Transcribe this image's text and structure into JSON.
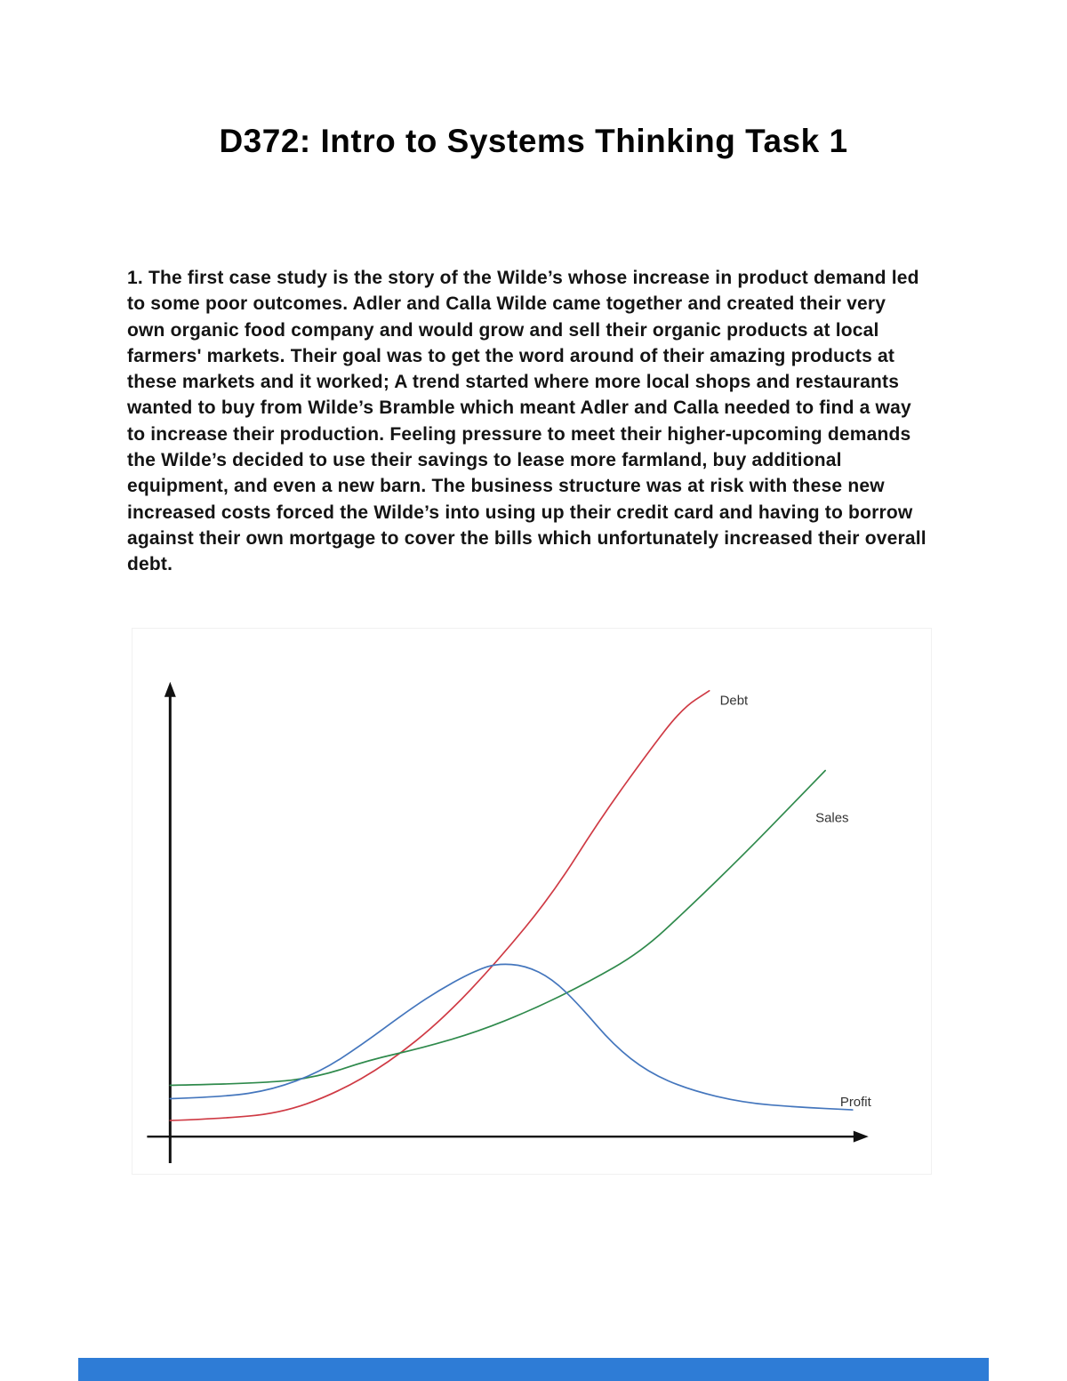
{
  "page": {
    "title": "D372: Intro to Systems Thinking Task 1",
    "paragraph": "1. The first case study is the story of the Wilde’s whose increase in product demand led to some poor outcomes. Adler and Calla Wilde came together and created their very own organic food company and would grow and sell their organic products at local farmers' markets. Their goal was to get the word around of their amazing products at these markets and it worked; A trend started where more local shops and restaurants wanted to buy from Wilde’s Bramble which meant Adler and Calla needed to find a way to increase their production. Feeling pressure to meet their higher-upcoming demands the Wilde’s decided to use their savings to lease more farmland, buy additional equipment, and even a new barn. The business structure was at risk with these new increased costs forced the Wilde’s into using up their credit card and having to borrow against their own mortgage to cover the bills which unfortunately increased their overall debt.",
    "footer_bar_color": "#2e7cd6"
  },
  "chart_data": {
    "type": "line",
    "title": "",
    "xlabel": "",
    "ylabel": "",
    "grid": false,
    "legend_position": "inline-end-labels",
    "axes": "unlabeled arrows (behavior-over-time graph)",
    "xlim": [
      0,
      100
    ],
    "ylim": [
      0,
      100
    ],
    "axis_color": "#111111",
    "series": [
      {
        "name": "Debt",
        "color": "#cf3a44",
        "x": [
          0,
          7,
          16,
          24,
          32,
          40,
          48,
          56,
          63,
          70,
          75,
          79
        ],
        "y": [
          3.6,
          4.0,
          5.2,
          9.5,
          16.5,
          26.4,
          39.4,
          54.3,
          71.2,
          86.1,
          96.0,
          100
        ],
        "label_offset": [
          12,
          16
        ]
      },
      {
        "name": "Sales",
        "color": "#2f8a4c",
        "x": [
          0,
          14,
          22,
          29,
          37,
          45,
          53,
          61,
          69,
          76,
          84,
          91,
          96
        ],
        "y": [
          11.5,
          11.9,
          13.5,
          17.1,
          19.9,
          23.5,
          28.4,
          34.4,
          41.4,
          51.3,
          63.2,
          74.2,
          82.1
        ],
        "label_offset": [
          -11,
          58
        ]
      },
      {
        "name": "Profit",
        "color": "#4476bd",
        "x": [
          0,
          8,
          15,
          22,
          28,
          35,
          40,
          45,
          48,
          52,
          56,
          60,
          65,
          70,
          76,
          84,
          92,
          100
        ],
        "y": [
          8.5,
          8.9,
          10.5,
          14.5,
          20.5,
          28.4,
          33.4,
          37.4,
          38.8,
          38.4,
          35.4,
          29.4,
          20.5,
          14.5,
          10.5,
          7.6,
          6.6,
          6.0
        ],
        "label_offset": [
          -14,
          -4
        ]
      }
    ]
  }
}
